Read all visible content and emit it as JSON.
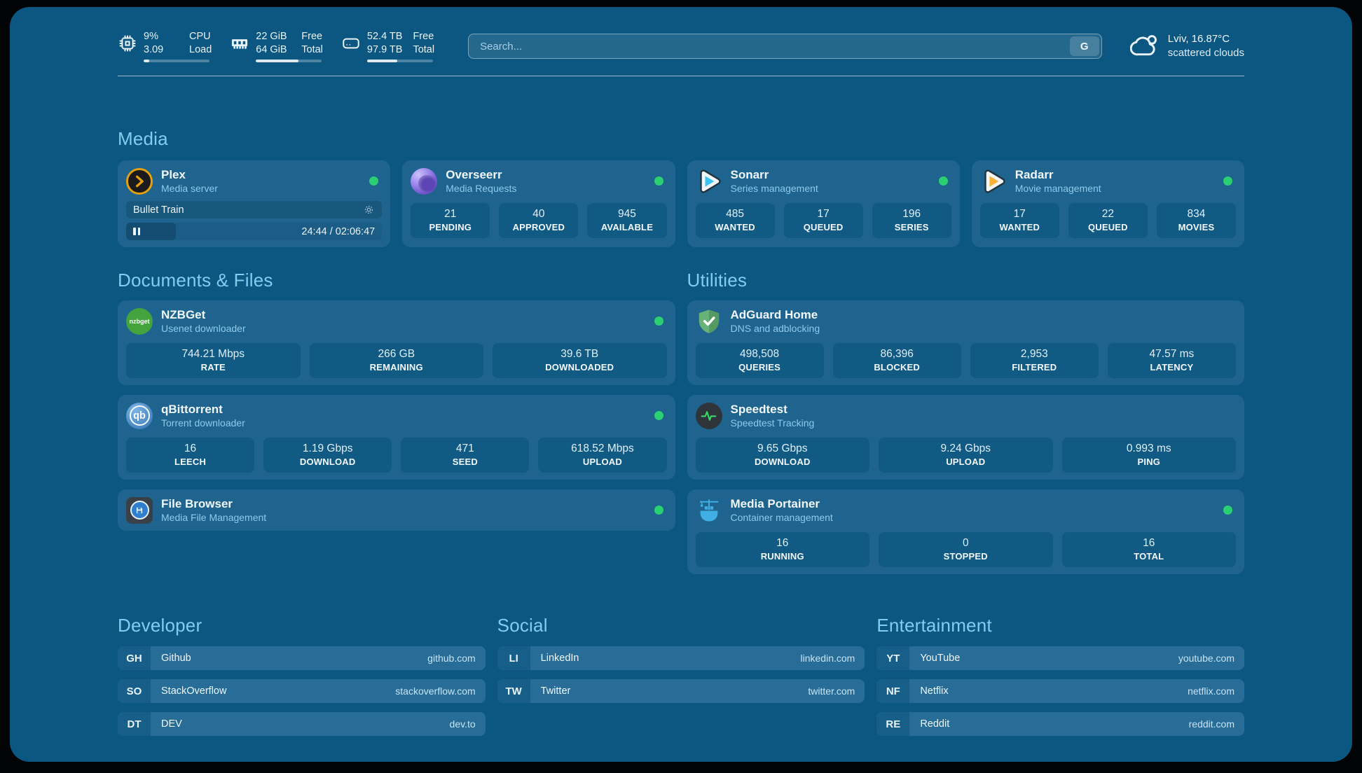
{
  "colors": {
    "background": "#0C5781",
    "card": "#1E648E",
    "stat_box": "#115A84",
    "heading_accent": "#84CBF0",
    "subtitle_accent": "#8FC9EB",
    "status_online": "#2BD072",
    "plex_brand": "#E5A00D"
  },
  "header": {
    "system_stats": [
      {
        "icon": "cpu-icon",
        "values": [
          "9%",
          "3.09"
        ],
        "labels": [
          "CPU",
          "Load"
        ],
        "progress_pct": 9
      },
      {
        "icon": "memory-icon",
        "values": [
          "22 GiB",
          "64 GiB"
        ],
        "labels": [
          "Free",
          "Total"
        ],
        "progress_pct": 65
      },
      {
        "icon": "disk-icon",
        "values": [
          "52.4 TB",
          "97.9 TB"
        ],
        "labels": [
          "Free",
          "Total"
        ],
        "progress_pct": 46
      }
    ],
    "search": {
      "placeholder": "Search...",
      "provider_button": "G"
    },
    "weather": {
      "icon": "cloud-icon",
      "location_temp": "Lviv, 16.87°C",
      "condition": "scattered clouds"
    }
  },
  "media": {
    "title": "Media",
    "plex": {
      "icon": "plex-icon",
      "title": "Plex",
      "subtitle": "Media server",
      "status": "online",
      "player": {
        "now_playing": "Bullet Train",
        "state": "paused",
        "time_display": "24:44 / 02:06:47",
        "progress_pct": 19.5
      }
    },
    "overseerr": {
      "icon": "overseerr-icon",
      "title": "Overseerr",
      "subtitle": "Media Requests",
      "status": "online",
      "stats": [
        {
          "value": "21",
          "label": "PENDING"
        },
        {
          "value": "40",
          "label": "APPROVED"
        },
        {
          "value": "945",
          "label": "AVAILABLE"
        }
      ]
    },
    "sonarr": {
      "icon": "sonarr-icon",
      "title": "Sonarr",
      "subtitle": "Series management",
      "status": "online",
      "stats": [
        {
          "value": "485",
          "label": "WANTED"
        },
        {
          "value": "17",
          "label": "QUEUED"
        },
        {
          "value": "196",
          "label": "SERIES"
        }
      ]
    },
    "radarr": {
      "icon": "radarr-icon",
      "title": "Radarr",
      "subtitle": "Movie management",
      "status": "online",
      "stats": [
        {
          "value": "17",
          "label": "WANTED"
        },
        {
          "value": "22",
          "label": "QUEUED"
        },
        {
          "value": "834",
          "label": "MOVIES"
        }
      ]
    }
  },
  "documents_files": {
    "title": "Documents & Files",
    "nzbget": {
      "icon": "nzbget-icon",
      "title": "NZBGet",
      "subtitle": "Usenet downloader",
      "status": "online",
      "stats": [
        {
          "value": "744.21 Mbps",
          "label": "RATE"
        },
        {
          "value": "266 GB",
          "label": "REMAINING"
        },
        {
          "value": "39.6 TB",
          "label": "DOWNLOADED"
        }
      ]
    },
    "qbittorrent": {
      "icon": "qbittorrent-icon",
      "title": "qBittorrent",
      "subtitle": "Torrent downloader",
      "status": "online",
      "stats": [
        {
          "value": "16",
          "label": "LEECH"
        },
        {
          "value": "1.19 Gbps",
          "label": "DOWNLOAD"
        },
        {
          "value": "471",
          "label": "SEED"
        },
        {
          "value": "618.52 Mbps",
          "label": "UPLOAD"
        }
      ]
    },
    "file_browser": {
      "icon": "filebrowser-icon",
      "title": "File Browser",
      "subtitle": "Media File Management",
      "status": "online"
    }
  },
  "utilities": {
    "title": "Utilities",
    "adguard": {
      "icon": "adguard-icon",
      "title": "AdGuard Home",
      "subtitle": "DNS and adblocking",
      "stats": [
        {
          "value": "498,508",
          "label": "QUERIES"
        },
        {
          "value": "86,396",
          "label": "BLOCKED"
        },
        {
          "value": "2,953",
          "label": "FILTERED"
        },
        {
          "value": "47.57 ms",
          "label": "LATENCY"
        }
      ]
    },
    "speedtest": {
      "icon": "speedtest-icon",
      "title": "Speedtest",
      "subtitle": "Speedtest Tracking",
      "stats": [
        {
          "value": "9.65 Gbps",
          "label": "DOWNLOAD"
        },
        {
          "value": "9.24 Gbps",
          "label": "UPLOAD"
        },
        {
          "value": "0.993 ms",
          "label": "PING"
        }
      ]
    },
    "portainer": {
      "icon": "portainer-icon",
      "title": "Media Portainer",
      "subtitle": "Container management",
      "status": "online",
      "stats": [
        {
          "value": "16",
          "label": "RUNNING"
        },
        {
          "value": "0",
          "label": "STOPPED"
        },
        {
          "value": "16",
          "label": "TOTAL"
        }
      ]
    }
  },
  "bookmarks": [
    {
      "title": "Developer",
      "links": [
        {
          "abbr": "GH",
          "label": "Github",
          "domain": "github.com"
        },
        {
          "abbr": "SO",
          "label": "StackOverflow",
          "domain": "stackoverflow.com"
        },
        {
          "abbr": "DT",
          "label": "DEV",
          "domain": "dev.to"
        }
      ]
    },
    {
      "title": "Social",
      "links": [
        {
          "abbr": "LI",
          "label": "LinkedIn",
          "domain": "linkedin.com"
        },
        {
          "abbr": "TW",
          "label": "Twitter",
          "domain": "twitter.com"
        }
      ]
    },
    {
      "title": "Entertainment",
      "links": [
        {
          "abbr": "YT",
          "label": "YouTube",
          "domain": "youtube.com"
        },
        {
          "abbr": "NF",
          "label": "Netflix",
          "domain": "netflix.com"
        },
        {
          "abbr": "RE",
          "label": "Reddit",
          "domain": "reddit.com"
        }
      ]
    }
  ]
}
